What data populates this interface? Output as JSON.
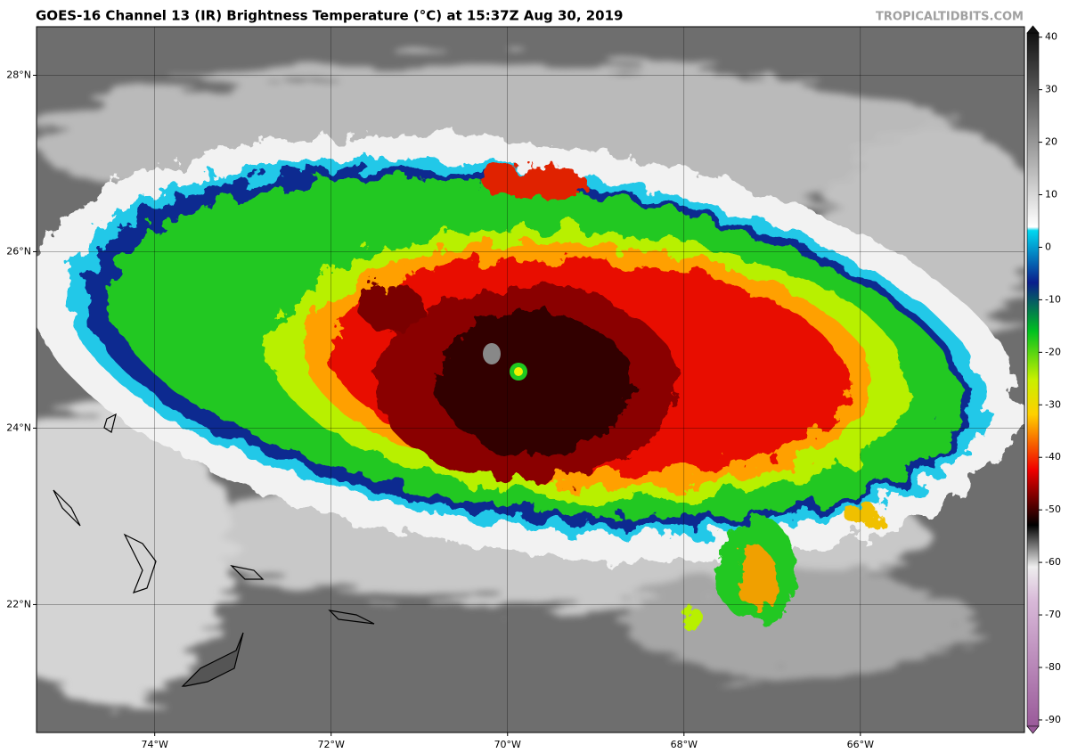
{
  "header": {
    "title": "GOES-16 Channel 13 (IR) Brightness Temperature (°C) at 15:37Z Aug 30, 2019",
    "credit": "TROPICALTIDBITS.COM"
  },
  "map": {
    "lon_range": [
      -75.34,
      -64.14
    ],
    "lat_range": [
      20.55,
      28.55
    ],
    "lon_ticks": [
      {
        "value": -74,
        "label": "74°W"
      },
      {
        "value": -72,
        "label": "72°W"
      },
      {
        "value": -70,
        "label": "70°W"
      },
      {
        "value": -68,
        "label": "68°W"
      },
      {
        "value": -66,
        "label": "66°W"
      }
    ],
    "lat_ticks": [
      {
        "value": 28,
        "label": "28°N"
      },
      {
        "value": 26,
        "label": "26°N"
      },
      {
        "value": 24,
        "label": "24°N"
      },
      {
        "value": 22,
        "label": "22°N"
      }
    ]
  },
  "colorbar": {
    "range": [
      -91.2,
      40.8
    ],
    "ticks": [
      40,
      30,
      20,
      10,
      0,
      -10,
      -20,
      -30,
      -40,
      -50,
      -60,
      -70,
      -80,
      -90
    ]
  }
}
